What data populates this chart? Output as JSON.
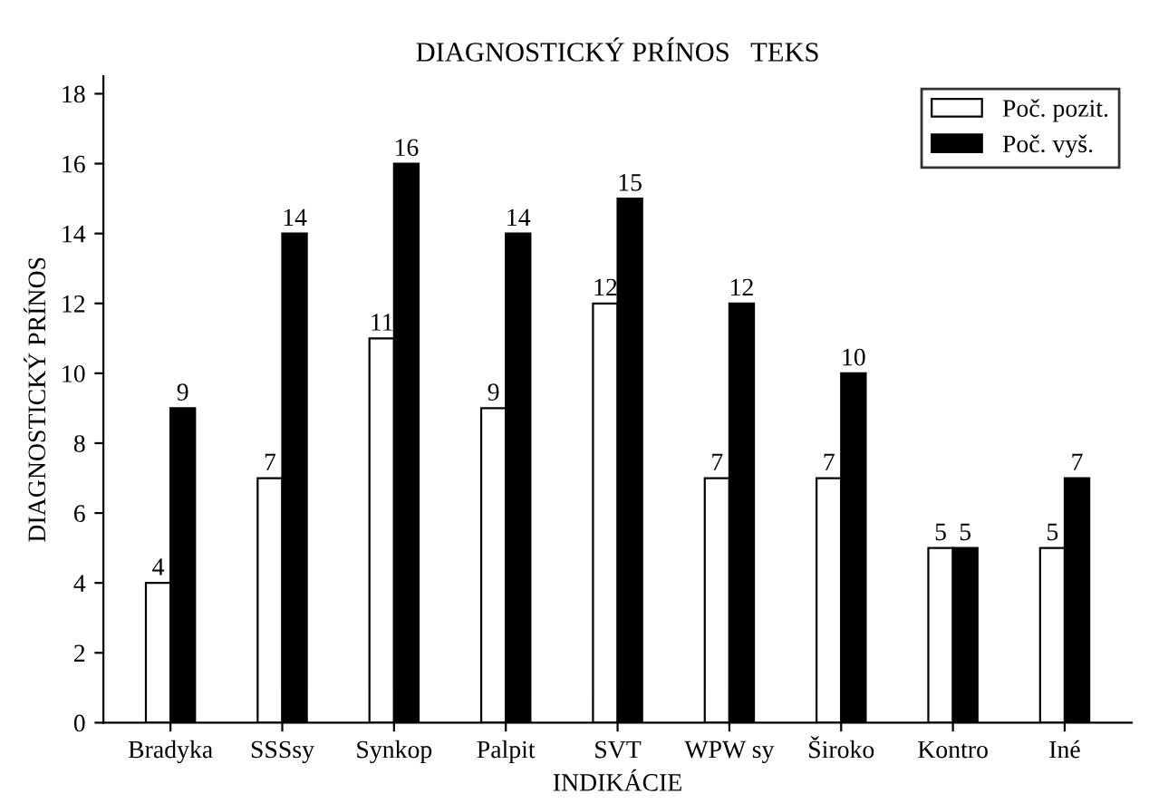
{
  "chart_data": {
    "type": "bar",
    "title": "DIAGNOSTICKÝ PRÍNOS   TEKS",
    "xlabel": "INDIKÁCIE",
    "ylabel": "DIAGNOSTICKÝ PRÍNOS",
    "categories": [
      "Bradyka",
      "SSSsy",
      "Synkop",
      "Palpit",
      "SVT",
      "WPW sy",
      "Široko",
      "Kontro",
      "Iné"
    ],
    "series": [
      {
        "name": "Poč. pozit.",
        "color": "#ffffff",
        "values": [
          4,
          7,
          11,
          9,
          12,
          7,
          7,
          5,
          5
        ]
      },
      {
        "name": "Poč. vyš.",
        "color": "#000000",
        "values": [
          9,
          14,
          16,
          14,
          15,
          12,
          10,
          5,
          7
        ]
      }
    ],
    "ylim": [
      0,
      18.5
    ],
    "yticks": [
      0,
      2,
      4,
      6,
      8,
      10,
      12,
      14,
      16,
      18
    ],
    "grid": false,
    "legend": "top right",
    "data_labels": true
  }
}
